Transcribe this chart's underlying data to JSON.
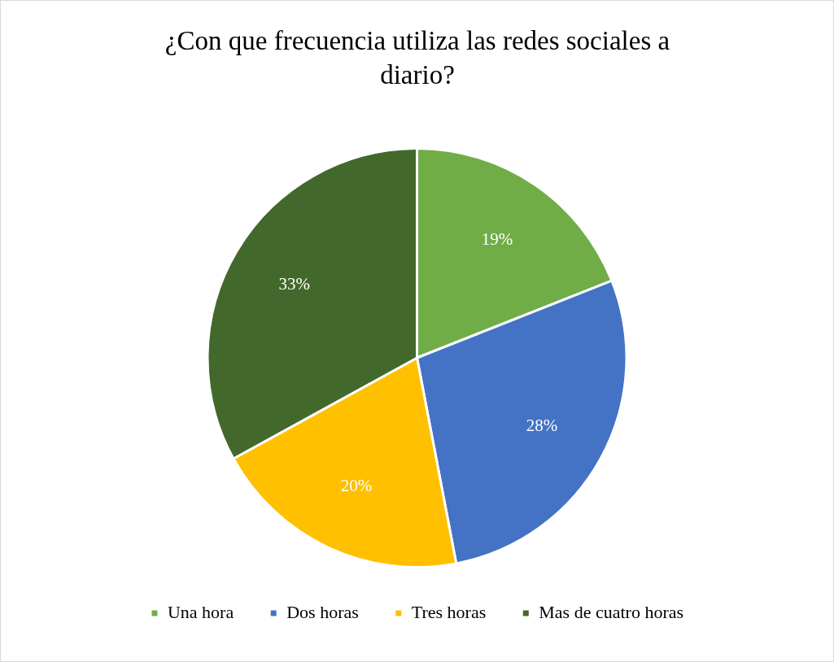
{
  "chart_data": {
    "type": "pie",
    "title": "¿Con que frecuencia utiliza las redes sociales a diario?",
    "categories": [
      "Una hora",
      "Dos horas",
      "Tres horas",
      "Mas de cuatro horas"
    ],
    "values": [
      19,
      28,
      20,
      33
    ],
    "colors": [
      "#70ad47",
      "#4472c4",
      "#ffc000",
      "#43682b"
    ],
    "value_labels": [
      "19%",
      "28%",
      "20%",
      "33%"
    ],
    "legend": "bottom"
  }
}
